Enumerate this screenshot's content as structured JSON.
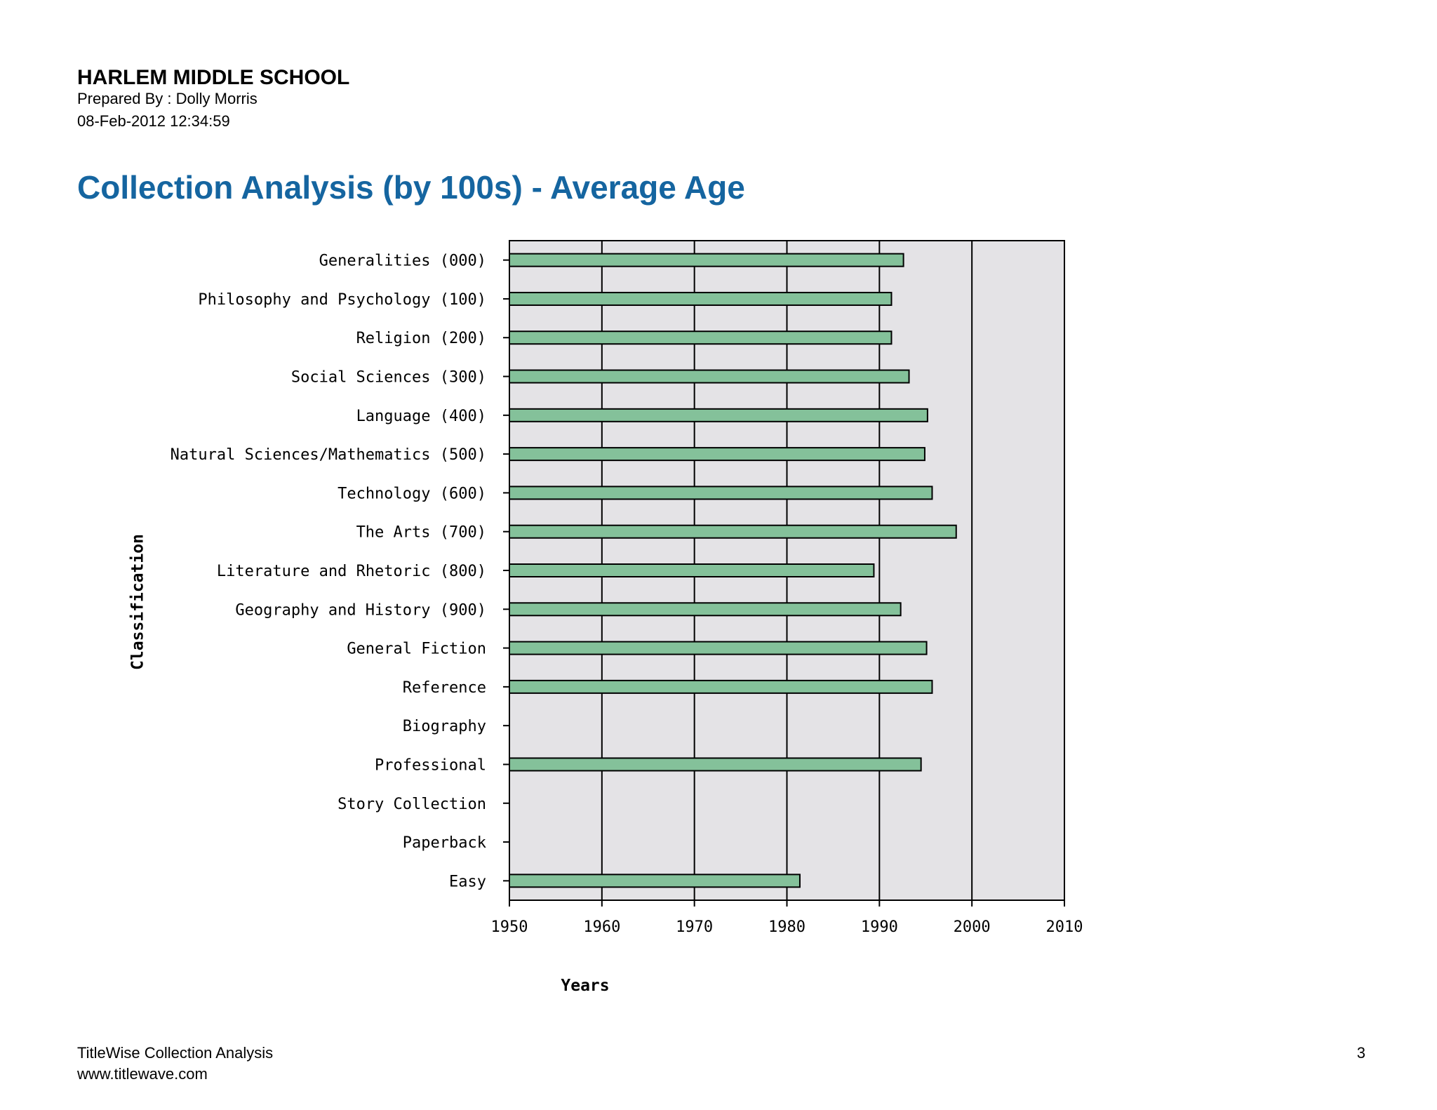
{
  "header": {
    "school": "HARLEM MIDDLE SCHOOL",
    "prepared_by": "Prepared By : Dolly Morris",
    "datetime": "08-Feb-2012 12:34:59"
  },
  "title": "Collection Analysis (by 100s) - Average Age",
  "chart_data": {
    "type": "bar",
    "orientation": "horizontal",
    "xlabel": "Years",
    "ylabel": "Classification",
    "xlim": [
      1950,
      2010
    ],
    "xticks": [
      "1950",
      "1960",
      "1970",
      "1980",
      "1990",
      "2000",
      "2010"
    ],
    "grid": true,
    "bar_color": "#84c19a",
    "plot_background": "#e4e3e6",
    "categories": [
      "Generalities (000)",
      "Philosophy and Psychology (100)",
      "Religion (200)",
      "Social Sciences (300)",
      "Language (400)",
      "Natural Sciences/Mathematics (500)",
      "Technology (600)",
      "The Arts (700)",
      "Literature and Rhetoric (800)",
      "Geography and History (900)",
      "General Fiction",
      "Reference",
      "Biography",
      "Professional",
      "Story Collection",
      "Paperback",
      "Easy"
    ],
    "values": [
      1992.6,
      1991.3,
      1991.3,
      1993.2,
      1995.2,
      1994.9,
      1995.7,
      1998.3,
      1989.4,
      1992.3,
      1995.1,
      1995.7,
      null,
      1994.5,
      null,
      null,
      1981.4
    ]
  },
  "footer": {
    "line1": "TitleWise Collection Analysis",
    "line2": "www.titlewave.com",
    "page": "3"
  }
}
